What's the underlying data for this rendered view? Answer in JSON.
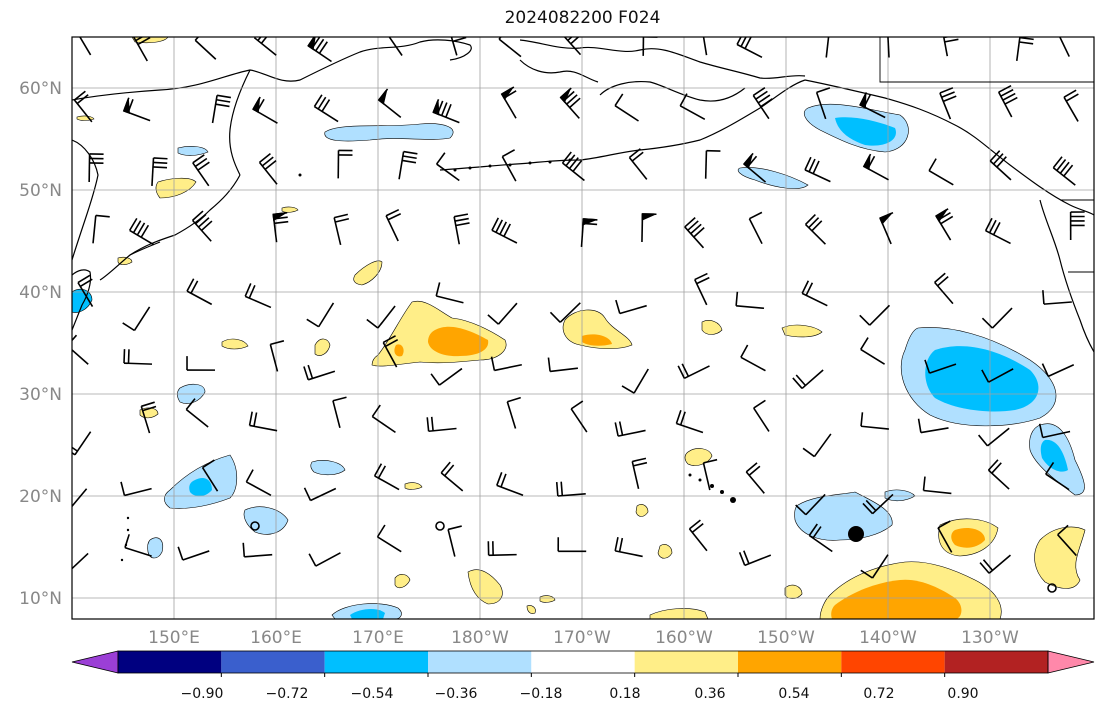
{
  "title": "2024082200 F024",
  "lat_labels": [
    "60°N",
    "50°N",
    "40°N",
    "30°N",
    "20°N",
    "10°N"
  ],
  "lon_labels": [
    "150°E",
    "160°E",
    "170°E",
    "180°W",
    "170°W",
    "160°W",
    "150°W",
    "140°W",
    "130°W"
  ],
  "colorbar": {
    "tick_labels": [
      "−0.90",
      "−0.72",
      "−0.54",
      "−0.36",
      "−0.18",
      "0.18",
      "0.36",
      "0.54",
      "0.72",
      "0.90"
    ],
    "colors": [
      "#9b3fd6",
      "#000080",
      "#3a5fcd",
      "#00bfff",
      "#b0e0ff",
      "#ffffff",
      "#ffee88",
      "#ffa500",
      "#ff4500",
      "#b22222",
      "#ff88aa"
    ]
  },
  "colors": {
    "neg_light": "#b0e0ff",
    "neg_mid": "#00bfff",
    "pos_light": "#ffee88",
    "pos_mid": "#ffa500",
    "coast": "#000000",
    "grid": "#a0a0a0"
  }
}
